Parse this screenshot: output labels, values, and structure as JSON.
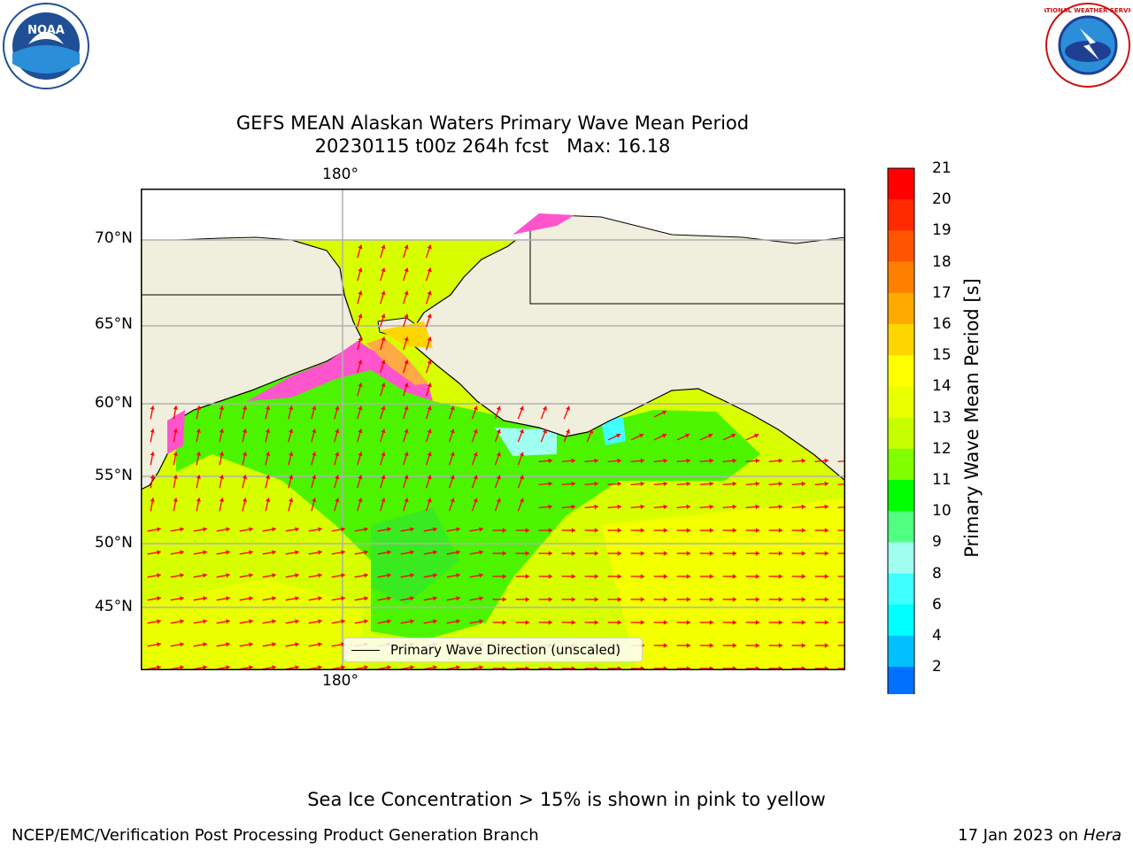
{
  "title_line1": "GEFS MEAN Alaskan Waters Primary Wave Mean Period",
  "title_line2": "20230115 t00z 264h fcst   Max: 16.18",
  "lon_label_top": "180°",
  "lon_label_bottom": "180°",
  "lat_labels": [
    "70°N",
    "65°N",
    "60°N",
    "55°N",
    "50°N",
    "45°N"
  ],
  "legend_label": "Primary Wave Direction (unscaled)",
  "colorbar": {
    "label": "Primary Wave Mean Period [s]",
    "ticks": [
      "21",
      "20",
      "19",
      "18",
      "17",
      "16",
      "15",
      "14",
      "13",
      "12",
      "11",
      "10",
      "9",
      "8",
      "6",
      "4",
      "2"
    ],
    "colors": [
      "#ff0000",
      "#ff2a00",
      "#ff5500",
      "#ff8000",
      "#ffaa00",
      "#ffd500",
      "#ffff00",
      "#eaff00",
      "#c8ff00",
      "#80ff00",
      "#00ff00",
      "#50ff80",
      "#a0fff0",
      "#40ffff",
      "#00ffff",
      "#00c0ff",
      "#0070ff"
    ],
    "below_color": "#0000ff"
  },
  "logos": {
    "left": "NOAA",
    "right": "NATIONAL WEATHER SERVICE"
  },
  "note": "Sea Ice Concentration > 15% is shown in pink to yellow",
  "footer_left": "NCEP/EMC/Verification Post Processing Product Generation Branch",
  "footer_right_date": "17 Jan 2023 on ",
  "footer_right_host": "Hera",
  "colors": {
    "land": "#f0eedc",
    "ocean_main": "#e4ff00",
    "ocean_mid": "#c8ff00",
    "ocean_green": "#4cf400",
    "arrow": "#ff0000",
    "ice": "#ff55cc"
  }
}
